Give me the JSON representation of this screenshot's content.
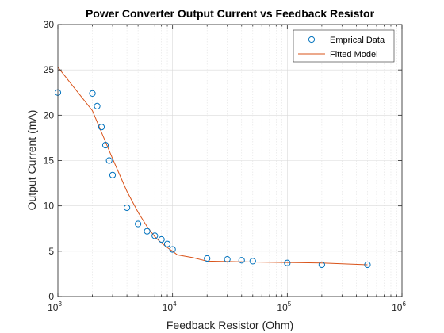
{
  "chart_data": {
    "type": "scatter",
    "title": "Power Converter Output Current vs Feedback Resistor",
    "xlabel": "Feedback Resistor (Ohm)",
    "ylabel": "Output Current (mA)",
    "xscale": "log",
    "xlim": [
      1000,
      1000000
    ],
    "ylim": [
      0,
      30
    ],
    "grid": true,
    "minor_grid": true,
    "x_ticks": [
      {
        "value": 1000,
        "base": "10",
        "exp": "3"
      },
      {
        "value": 10000,
        "base": "10",
        "exp": "4"
      },
      {
        "value": 100000,
        "base": "10",
        "exp": "5"
      },
      {
        "value": 1000000,
        "base": "10",
        "exp": "6"
      }
    ],
    "y_ticks": [
      0,
      5,
      10,
      15,
      20,
      25,
      30
    ],
    "legend_position": "top-right",
    "colors": {
      "marker": "#0072BD",
      "line": "#D95319"
    },
    "series": [
      {
        "name": "Emprical Data",
        "kind": "scatter",
        "x": [
          1000,
          2000,
          2200,
          2400,
          2600,
          2800,
          3000,
          4000,
          5000,
          6000,
          7000,
          8000,
          9000,
          10000,
          20000,
          30000,
          40000,
          50000,
          100000,
          200000,
          500000
        ],
        "y": [
          22.5,
          22.4,
          21.0,
          18.7,
          16.7,
          15.0,
          13.4,
          9.8,
          8.0,
          7.2,
          6.7,
          6.3,
          5.8,
          5.2,
          4.2,
          4.1,
          4.0,
          3.9,
          3.7,
          3.5,
          3.5
        ]
      },
      {
        "name": "Fitted Model",
        "kind": "line",
        "x": [
          1000,
          2000,
          3000,
          4000,
          5000,
          6000,
          7000,
          8000,
          9000,
          10000,
          11000,
          15000,
          20000,
          50000,
          100000,
          200000,
          500000
        ],
        "y": [
          25.3,
          20.5,
          15.2,
          11.6,
          9.3,
          7.7,
          6.6,
          5.9,
          5.4,
          5.0,
          4.6,
          4.3,
          3.9,
          3.8,
          3.75,
          3.7,
          3.5
        ]
      }
    ]
  }
}
